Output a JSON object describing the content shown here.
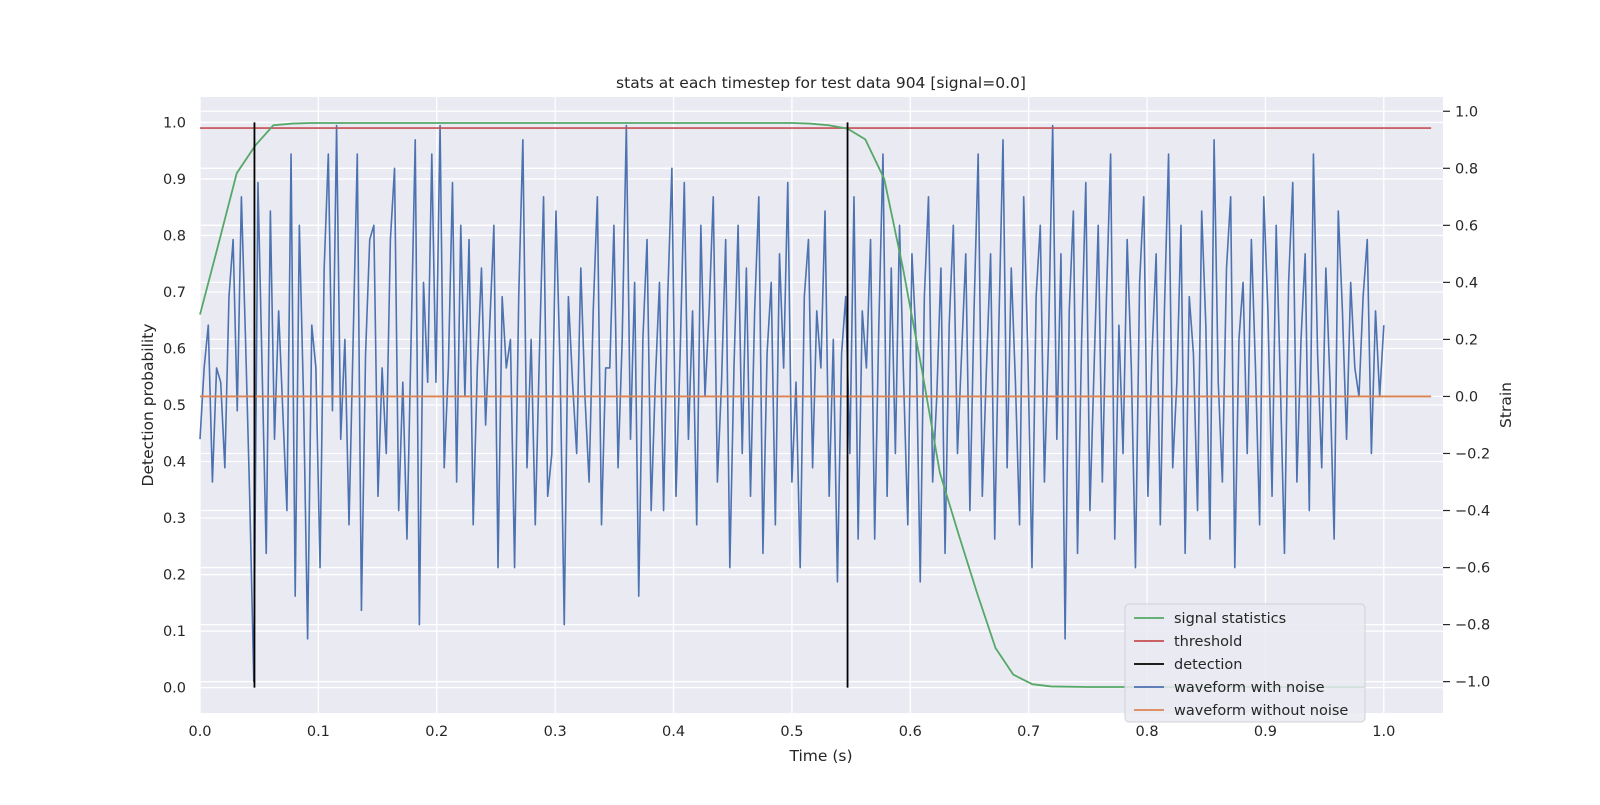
{
  "chart_data": {
    "type": "line",
    "title": "stats at each timestep for test data 904 [signal=0.0]",
    "xlabel": "Time (s)",
    "ylabel": "Detection probability",
    "y2label": "Strain",
    "xlim": [
      0.0,
      1.05
    ],
    "ylim": [
      -0.045,
      1.045
    ],
    "y2lim": [
      -1.11,
      1.05
    ],
    "xticks": [
      "0.0",
      "0.1",
      "0.2",
      "0.3",
      "0.4",
      "0.5",
      "0.6",
      "0.7",
      "0.8",
      "0.9",
      "1.0"
    ],
    "yticks": [
      "0.0",
      "0.1",
      "0.2",
      "0.3",
      "0.4",
      "0.5",
      "0.6",
      "0.7",
      "0.8",
      "0.9",
      "1.0"
    ],
    "y2ticks": [
      "−1.0",
      "−0.8",
      "−0.6",
      "−0.4",
      "−0.2",
      "0.0",
      "0.2",
      "0.4",
      "0.6",
      "0.8",
      "1.0"
    ],
    "grid": true,
    "legend_position": "lower-right",
    "series": [
      {
        "name": "signal statistics",
        "color": "#55a868",
        "axis": "left",
        "x": [
          0.0,
          0.015,
          0.031,
          0.047,
          0.062,
          0.078,
          0.094,
          0.11,
          0.2,
          0.3,
          0.4,
          0.5,
          0.515,
          0.531,
          0.547,
          0.562,
          0.578,
          0.594,
          0.61,
          0.625,
          0.641,
          0.656,
          0.672,
          0.687,
          0.703,
          0.719,
          0.75,
          0.8,
          0.9,
          0.984
        ],
        "values": [
          0.66,
          0.78,
          0.91,
          0.96,
          0.995,
          0.998,
          0.999,
          0.999,
          0.999,
          0.999,
          0.999,
          0.999,
          0.998,
          0.995,
          0.989,
          0.97,
          0.9,
          0.74,
          0.56,
          0.38,
          0.27,
          0.17,
          0.07,
          0.023,
          0.006,
          0.002,
          0.001,
          0.001,
          0.001,
          0.001
        ]
      },
      {
        "name": "threshold",
        "color": "#c44e52",
        "axis": "left",
        "x": [
          0.0,
          1.04
        ],
        "values": [
          0.99,
          0.99
        ]
      },
      {
        "name": "detection",
        "color": "#000000",
        "axis": "left",
        "vlines": [
          0.046,
          0.547
        ],
        "range": [
          0.0,
          1.0
        ]
      },
      {
        "name": "waveform with noise",
        "color": "#4c72b0",
        "axis": "right",
        "x_start": 0.0,
        "x_end": 1.0,
        "amplitude_range": [
          -1.0,
          1.0
        ],
        "values": [
          -0.15,
          0.1,
          0.25,
          -0.3,
          0.1,
          0.05,
          -0.25,
          0.35,
          0.55,
          -0.05,
          0.7,
          0.2,
          -0.35,
          -1.0,
          0.75,
          0.1,
          -0.55,
          0.65,
          -0.15,
          0.3,
          -0.05,
          -0.4,
          0.85,
          -0.7,
          0.6,
          0.0,
          -0.85,
          0.25,
          0.1,
          -0.6,
          0.45,
          0.85,
          -0.05,
          0.95,
          -0.15,
          0.2,
          -0.45,
          0.2,
          0.85,
          -0.75,
          0.15,
          0.55,
          0.6,
          -0.35,
          0.1,
          -0.2,
          0.55,
          0.8,
          -0.4,
          0.05,
          -0.5,
          0.2,
          0.9,
          -0.8,
          0.4,
          0.05,
          0.85,
          0.05,
          0.95,
          -0.25,
          0.1,
          0.75,
          -0.3,
          0.6,
          0.0,
          0.55,
          -0.45,
          0.1,
          0.45,
          -0.1,
          0.25,
          0.6,
          -0.6,
          0.35,
          0.1,
          0.2,
          -0.6,
          0.35,
          0.9,
          -0.25,
          0.2,
          -0.45,
          0.15,
          0.7,
          -0.35,
          -0.2,
          0.65,
          0.1,
          -0.8,
          0.35,
          0.05,
          -0.2,
          0.45,
          0.0,
          -0.3,
          0.3,
          0.7,
          -0.45,
          0.1,
          0.1,
          0.6,
          -0.25,
          0.2,
          0.95,
          -0.15,
          0.4,
          -0.7,
          0.2,
          0.55,
          -0.4,
          0.05,
          0.4,
          -0.4,
          0.35,
          0.8,
          -0.35,
          0.15,
          0.75,
          -0.15,
          0.3,
          -0.45,
          0.6,
          0.0,
          0.3,
          0.7,
          -0.3,
          0.05,
          0.55,
          -0.6,
          0.1,
          0.6,
          -0.2,
          0.45,
          -0.35,
          0.3,
          0.7,
          -0.55,
          0.15,
          0.4,
          -0.45,
          0.5,
          0.1,
          0.75,
          -0.3,
          0.05,
          -0.6,
          0.35,
          0.55,
          -0.25,
          0.3,
          0.1,
          0.65,
          -0.35,
          0.2,
          -0.65,
          0.15,
          0.35,
          -0.2,
          0.7,
          -0.5,
          0.3,
          0.1,
          0.55,
          -0.5,
          0.25,
          0.85,
          -0.35,
          0.45,
          -0.2,
          0.6,
          0.05,
          -0.45,
          0.5,
          0.2,
          -0.65,
          0.35,
          0.7,
          -0.3,
          0.0,
          0.45,
          -0.55,
          0.25,
          0.6,
          -0.2,
          0.15,
          0.5,
          -0.4,
          0.3,
          0.85,
          -0.35,
          0.1,
          0.5,
          -0.5,
          0.25,
          0.9,
          -0.25,
          0.45,
          0.05,
          -0.45,
          0.7,
          0.15,
          -0.6,
          0.35,
          0.6,
          -0.3,
          0.2,
          0.95,
          -0.15,
          0.5,
          -0.85,
          0.3,
          0.65,
          -0.55,
          0.2,
          0.75,
          -0.4,
          0.1,
          0.6,
          -0.3,
          0.35,
          0.85,
          -0.5,
          0.25,
          -0.2,
          0.55,
          0.1,
          -0.6,
          0.4,
          0.7,
          -0.35,
          0.15,
          0.5,
          -0.45,
          0.3,
          0.85,
          -0.25,
          0.05,
          0.6,
          -0.55,
          0.35,
          0.15,
          -0.4,
          0.65,
          0.25,
          -0.5,
          0.9,
          0.05,
          -0.3,
          0.45,
          0.7,
          -0.6,
          0.2,
          0.4,
          -0.2,
          0.55,
          0.1,
          -0.45,
          0.7,
          0.3,
          -0.35,
          0.6,
          0.05,
          -0.55,
          0.4,
          0.75,
          -0.3,
          0.2,
          0.5,
          -0.4,
          0.85,
          0.15,
          -0.25,
          0.45,
          0.05,
          -0.5,
          0.65,
          0.3,
          -0.15,
          0.4,
          0.1,
          0.0,
          0.35,
          0.55,
          -0.2,
          0.3,
          0.0,
          0.25
        ]
      },
      {
        "name": "waveform without noise",
        "color": "#dd8452",
        "axis": "right",
        "x": [
          0.0,
          1.04
        ],
        "values": [
          0.0,
          0.0
        ]
      }
    ]
  }
}
